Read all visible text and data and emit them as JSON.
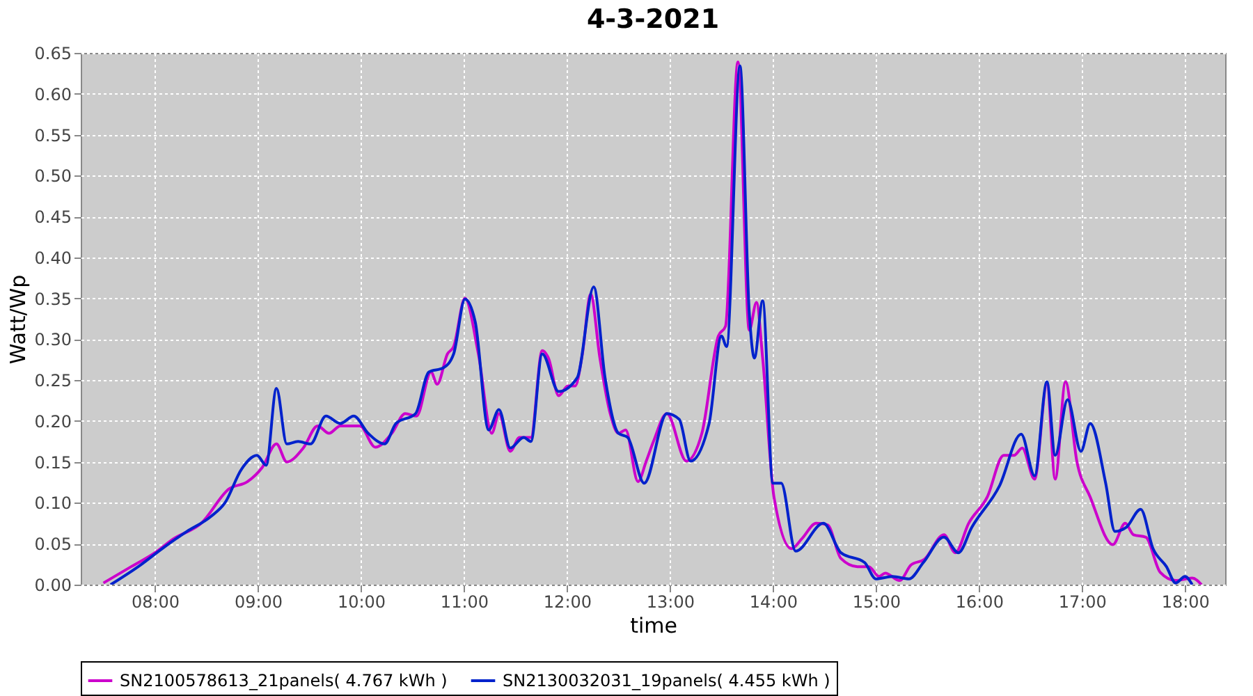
{
  "chart_data": {
    "type": "line",
    "title": "4-3-2021",
    "xlabel": "time",
    "ylabel": "Watt/Wp",
    "xlim": [
      7.28,
      18.39
    ],
    "ylim": [
      0,
      0.65
    ],
    "xticks": [
      {
        "value": 8,
        "label": "08:00"
      },
      {
        "value": 9,
        "label": "09:00"
      },
      {
        "value": 10,
        "label": "10:00"
      },
      {
        "value": 11,
        "label": "11:00"
      },
      {
        "value": 12,
        "label": "12:00"
      },
      {
        "value": 13,
        "label": "13:00"
      },
      {
        "value": 14,
        "label": "14:00"
      },
      {
        "value": 15,
        "label": "15:00"
      },
      {
        "value": 16,
        "label": "16:00"
      },
      {
        "value": 17,
        "label": "17:00"
      },
      {
        "value": 18,
        "label": "18:00"
      }
    ],
    "yticks": [
      {
        "value": 0,
        "label": "0.00"
      },
      0.05,
      {
        "value": 0.1,
        "label": "0.10"
      },
      0.15,
      {
        "value": 0.2,
        "label": "0.20"
      },
      0.25,
      {
        "value": 0.3,
        "label": "0.30"
      },
      0.35,
      {
        "value": 0.4,
        "label": "0.40"
      },
      0.45,
      {
        "value": 0.5,
        "label": "0.50"
      },
      0.55,
      {
        "value": 0.6,
        "label": "0.60"
      },
      0.65
    ],
    "grid": true,
    "legend": "bottom",
    "marker": "none",
    "line_style": "solid",
    "series": [
      {
        "name": "SN2100578613_21panels( 4.767 kWh )",
        "color": "#cc00cc",
        "x": [
          7.5,
          7.77,
          8.0,
          8.18,
          8.45,
          8.72,
          8.9,
          9.04,
          9.18,
          9.28,
          9.44,
          9.58,
          9.69,
          9.8,
          9.99,
          10.14,
          10.3,
          10.43,
          10.54,
          10.68,
          10.74,
          10.84,
          10.9,
          11.01,
          11.14,
          11.27,
          11.34,
          11.45,
          11.54,
          11.65,
          11.76,
          11.82,
          11.92,
          12.01,
          12.08,
          12.15,
          12.23,
          12.32,
          12.42,
          12.5,
          12.57,
          12.69,
          12.77,
          12.84,
          12.97,
          13.16,
          13.31,
          13.47,
          13.54,
          13.66,
          13.77,
          13.84,
          13.9,
          14.01,
          14.18,
          14.28,
          14.42,
          14.53,
          14.66,
          14.82,
          14.93,
          15.03,
          15.09,
          15.23,
          15.34,
          15.47,
          15.66,
          15.77,
          15.9,
          16.08,
          16.24,
          16.34,
          16.42,
          16.54,
          16.66,
          16.74,
          16.84,
          16.95,
          17.08,
          17.3,
          17.42,
          17.5,
          17.62,
          17.76,
          17.91,
          18.07,
          18.16
        ],
        "values": [
          0.002,
          0.022,
          0.039,
          0.056,
          0.075,
          0.117,
          0.126,
          0.143,
          0.172,
          0.15,
          0.167,
          0.194,
          0.185,
          0.194,
          0.194,
          0.168,
          0.185,
          0.209,
          0.206,
          0.26,
          0.245,
          0.282,
          0.291,
          0.35,
          0.282,
          0.185,
          0.209,
          0.163,
          0.18,
          0.18,
          0.286,
          0.277,
          0.231,
          0.243,
          0.243,
          0.282,
          0.355,
          0.277,
          0.209,
          0.185,
          0.189,
          0.126,
          0.151,
          0.175,
          0.209,
          0.151,
          0.185,
          0.304,
          0.316,
          0.639,
          0.311,
          0.345,
          0.277,
          0.107,
          0.044,
          0.056,
          0.075,
          0.073,
          0.032,
          0.022,
          0.022,
          0.01,
          0.014,
          0.005,
          0.024,
          0.031,
          0.061,
          0.039,
          0.075,
          0.107,
          0.158,
          0.158,
          0.167,
          0.129,
          0.245,
          0.129,
          0.248,
          0.151,
          0.107,
          0.049,
          0.075,
          0.061,
          0.058,
          0.015,
          0.005,
          0.008,
          0.0
        ]
      },
      {
        "name": "SN2130032031_19panels( 4.455 kWh )",
        "color": "#0022cc",
        "x": [
          7.57,
          7.86,
          8.07,
          8.31,
          8.54,
          8.68,
          8.84,
          8.99,
          9.08,
          9.18,
          9.28,
          9.39,
          9.51,
          9.66,
          9.8,
          9.93,
          10.07,
          10.23,
          10.34,
          10.53,
          10.66,
          10.8,
          10.9,
          11.01,
          11.11,
          11.24,
          11.34,
          11.45,
          11.58,
          11.65,
          11.76,
          11.92,
          12.1,
          12.26,
          12.37,
          12.5,
          12.59,
          12.75,
          12.97,
          13.09,
          13.2,
          13.38,
          13.5,
          13.55,
          13.68,
          13.77,
          13.82,
          13.9,
          14.0,
          14.08,
          14.22,
          14.49,
          14.66,
          14.89,
          15.0,
          15.16,
          15.32,
          15.46,
          15.66,
          15.8,
          15.93,
          16.2,
          16.41,
          16.54,
          16.66,
          16.74,
          16.86,
          16.99,
          17.08,
          17.23,
          17.32,
          17.43,
          17.57,
          17.69,
          17.82,
          17.91,
          18.0,
          18.07
        ],
        "values": [
          0.0,
          0.024,
          0.044,
          0.065,
          0.083,
          0.1,
          0.141,
          0.158,
          0.146,
          0.24,
          0.172,
          0.175,
          0.172,
          0.206,
          0.197,
          0.206,
          0.185,
          0.172,
          0.197,
          0.209,
          0.26,
          0.265,
          0.282,
          0.349,
          0.321,
          0.189,
          0.214,
          0.167,
          0.18,
          0.175,
          0.282,
          0.236,
          0.253,
          0.364,
          0.253,
          0.185,
          0.18,
          0.124,
          0.209,
          0.202,
          0.151,
          0.197,
          0.304,
          0.291,
          0.634,
          0.333,
          0.277,
          0.347,
          0.124,
          0.124,
          0.041,
          0.075,
          0.039,
          0.027,
          0.007,
          0.01,
          0.007,
          0.027,
          0.058,
          0.039,
          0.07,
          0.121,
          0.184,
          0.133,
          0.248,
          0.158,
          0.226,
          0.163,
          0.197,
          0.124,
          0.065,
          0.07,
          0.092,
          0.044,
          0.022,
          0.002,
          0.01,
          0.0
        ]
      }
    ]
  }
}
